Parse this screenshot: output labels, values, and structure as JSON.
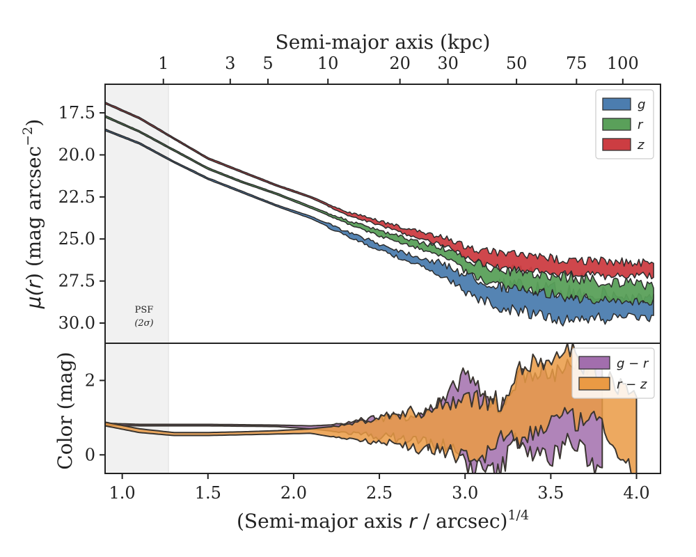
{
  "chart_data": [
    {
      "type": "area",
      "panel": "surface-brightness",
      "ylabel": "μ(r) (mag arcsec⁻²)",
      "x_label_note": "shared x axis: (Semi-major axis r / arcsec)^1/4",
      "xlim": [
        0.9,
        4.14
      ],
      "ylim": [
        31.2,
        15.8
      ],
      "y_inverted": true,
      "yticks": [
        "17.5",
        "20.0",
        "22.5",
        "25.0",
        "27.5",
        "30.0"
      ],
      "ytick_values": [
        17.5,
        20.0,
        22.5,
        25.0,
        27.5,
        30.0
      ],
      "top_axis": {
        "label": "Semi-major axis (kpc)",
        "ticks": [
          "1",
          "3",
          "5",
          "10",
          "20",
          "30",
          "50",
          "75",
          "100"
        ],
        "tick_positions_x": [
          1.24,
          1.63,
          1.85,
          2.2,
          2.62,
          2.9,
          3.3,
          3.65,
          3.92
        ]
      },
      "psf_band": {
        "label_line1": "PSF",
        "label_line2": "(2σ)",
        "x_range": [
          0.9,
          1.27
        ]
      },
      "legend": {
        "placement": "top-right",
        "entries": [
          "g",
          "r",
          "z"
        ]
      },
      "series": [
        {
          "name": "g",
          "color": "#4c7daf",
          "x": [
            0.9,
            1.1,
            1.3,
            1.5,
            1.7,
            1.9,
            2.1,
            2.3,
            2.5,
            2.7,
            2.9,
            3.0,
            3.1,
            3.2,
            3.3,
            3.4,
            3.5,
            3.6,
            3.7,
            3.8,
            3.9,
            4.0,
            4.1
          ],
          "values": [
            18.5,
            19.3,
            20.4,
            21.4,
            22.2,
            23.0,
            23.7,
            24.6,
            25.4,
            26.1,
            26.8,
            27.4,
            27.8,
            28.1,
            28.2,
            28.4,
            28.5,
            28.7,
            28.6,
            28.7,
            28.8,
            28.8,
            28.9
          ],
          "spread": [
            0.1,
            0.1,
            0.1,
            0.1,
            0.1,
            0.1,
            0.15,
            0.2,
            0.3,
            0.4,
            0.6,
            0.9,
            1.0,
            1.1,
            1.2,
            1.2,
            1.3,
            1.3,
            1.2,
            1.2,
            1.0,
            1.0,
            0.9
          ]
        },
        {
          "name": "r",
          "color": "#5aa05a",
          "x": [
            0.9,
            1.1,
            1.3,
            1.5,
            1.7,
            1.9,
            2.1,
            2.3,
            2.5,
            2.7,
            2.9,
            3.0,
            3.1,
            3.2,
            3.3,
            3.4,
            3.5,
            3.6,
            3.7,
            3.8,
            3.9,
            4.0,
            4.1
          ],
          "values": [
            17.7,
            18.6,
            19.7,
            20.8,
            21.6,
            22.3,
            23.1,
            23.9,
            24.6,
            25.2,
            25.8,
            26.4,
            26.8,
            27.1,
            27.2,
            27.3,
            27.5,
            27.6,
            27.7,
            27.9,
            27.9,
            28.0,
            28.0
          ],
          "spread": [
            0.1,
            0.1,
            0.1,
            0.1,
            0.1,
            0.1,
            0.12,
            0.15,
            0.25,
            0.3,
            0.45,
            0.6,
            0.7,
            0.8,
            0.85,
            0.9,
            0.9,
            1.0,
            1.0,
            0.9,
            0.9,
            0.8,
            0.8
          ]
        },
        {
          "name": "z",
          "color": "#cc3d42",
          "x": [
            0.9,
            1.1,
            1.3,
            1.5,
            1.7,
            1.9,
            2.1,
            2.3,
            2.5,
            2.7,
            2.9,
            3.0,
            3.1,
            3.2,
            3.3,
            3.4,
            3.5,
            3.6,
            3.7,
            3.8,
            3.9,
            4.0,
            4.1
          ],
          "values": [
            16.9,
            17.8,
            19.0,
            20.2,
            21.0,
            21.8,
            22.5,
            23.4,
            24.0,
            24.6,
            25.1,
            25.6,
            25.9,
            26.1,
            26.2,
            26.3,
            26.4,
            26.5,
            26.5,
            26.6,
            26.6,
            26.6,
            26.7
          ],
          "spread": [
            0.1,
            0.1,
            0.1,
            0.1,
            0.1,
            0.1,
            0.1,
            0.15,
            0.2,
            0.3,
            0.4,
            0.5,
            0.6,
            0.7,
            0.7,
            0.7,
            0.7,
            0.7,
            0.7,
            0.7,
            0.7,
            0.6,
            0.6
          ]
        }
      ]
    },
    {
      "type": "area",
      "panel": "color",
      "ylabel": "Color (mag)",
      "xlabel": "(Semi-major axis r / arcsec)^1/4",
      "xlim": [
        0.9,
        4.14
      ],
      "ylim": [
        -0.5,
        3.0
      ],
      "yticks": [
        "0",
        "2"
      ],
      "ytick_values": [
        0,
        2
      ],
      "xticks": [
        "1.0",
        "1.5",
        "2.0",
        "2.5",
        "3.0",
        "3.5",
        "4.0"
      ],
      "xtick_values": [
        1.0,
        1.5,
        2.0,
        2.5,
        3.0,
        3.5,
        4.0
      ],
      "legend": {
        "placement": "top-right",
        "entries": [
          "g − r",
          "r − z"
        ]
      },
      "series": [
        {
          "name": "g − r",
          "color": "#a26ead",
          "x": [
            0.9,
            1.1,
            1.3,
            1.5,
            1.7,
            1.9,
            2.1,
            2.2,
            2.3,
            2.4,
            2.5,
            2.6,
            2.7,
            2.8,
            2.9,
            3.0,
            3.1,
            3.2,
            3.3,
            3.4,
            3.5,
            3.6,
            3.7,
            3.8
          ],
          "upper": [
            0.85,
            0.82,
            0.82,
            0.82,
            0.81,
            0.8,
            0.78,
            0.8,
            0.85,
            0.95,
            1.0,
            1.05,
            1.1,
            1.2,
            1.5,
            2.3,
            1.5,
            1.3,
            2.0,
            2.3,
            2.1,
            2.5,
            2.3,
            2.2
          ],
          "lower": [
            0.8,
            0.78,
            0.78,
            0.78,
            0.77,
            0.76,
            0.7,
            0.65,
            0.6,
            0.55,
            0.5,
            0.45,
            0.4,
            0.3,
            0.2,
            -0.2,
            -0.4,
            -0.5,
            0.5,
            0.0,
            -0.1,
            0.4,
            0.0,
            -0.5
          ]
        },
        {
          "name": "r − z",
          "color": "#ea9a44",
          "x": [
            0.9,
            1.1,
            1.3,
            1.5,
            1.7,
            1.9,
            2.1,
            2.2,
            2.3,
            2.4,
            2.5,
            2.6,
            2.7,
            2.8,
            2.9,
            3.0,
            3.1,
            3.2,
            3.3,
            3.4,
            3.5,
            3.6,
            3.7,
            3.8,
            3.9,
            4.0
          ],
          "upper": [
            0.88,
            0.7,
            0.6,
            0.6,
            0.62,
            0.65,
            0.7,
            0.75,
            0.8,
            0.9,
            1.0,
            1.1,
            1.15,
            1.2,
            1.4,
            1.6,
            1.5,
            1.4,
            2.2,
            2.5,
            2.3,
            2.9,
            2.4,
            2.0,
            1.9,
            1.6
          ],
          "lower": [
            0.78,
            0.6,
            0.52,
            0.52,
            0.54,
            0.56,
            0.58,
            0.5,
            0.45,
            0.4,
            0.35,
            0.3,
            0.2,
            0.15,
            0.0,
            0.1,
            -0.2,
            0.5,
            0.3,
            0.6,
            0.9,
            1.0,
            0.8,
            1.0,
            -0.4,
            -0.4
          ]
        }
      ]
    }
  ],
  "labels": {
    "top_xlabel": "Semi-major axis (kpc)",
    "bottom_xlabel_main": "(Semi-major axis ",
    "bottom_xlabel_r": "r",
    "bottom_xlabel_tail": " / arcsec)",
    "bottom_xlabel_sup": "1/4",
    "top_ylabel_mu": "μ(",
    "top_ylabel_r": "r",
    "top_ylabel_tail": ") (mag arcsec",
    "top_ylabel_sup": "−2",
    "top_ylabel_close": ")",
    "bottom_ylabel": "Color (mag)"
  }
}
